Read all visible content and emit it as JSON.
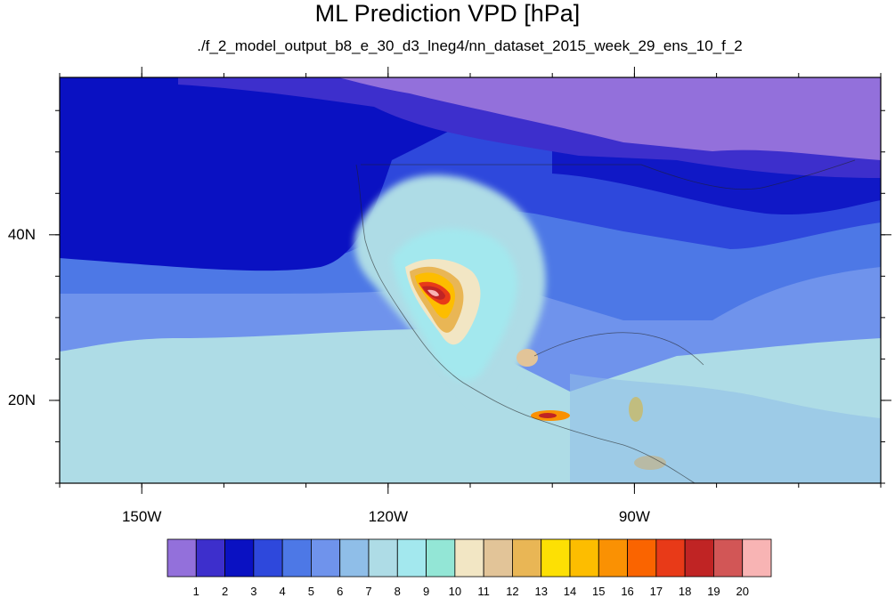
{
  "chart_data": {
    "type": "heatmap",
    "title": "ML Prediction VPD [hPa]",
    "subtitle": "./f_2_model_output_b8_e_30_d3_lneg4/nn_dataset_2015_week_29_ens_10_f_2",
    "lon_range": [
      -160,
      -60
    ],
    "lat_range": [
      10,
      59
    ],
    "x_ticks": [
      {
        "lon": -150,
        "label": "150W"
      },
      {
        "lon": -120,
        "label": "120W"
      },
      {
        "lon": -90,
        "label": "90W"
      }
    ],
    "y_ticks": [
      {
        "lat": 40,
        "label": "40N"
      },
      {
        "lat": 20,
        "label": "20N"
      }
    ],
    "levels": [
      "1",
      "2",
      "3",
      "4",
      "5",
      "6",
      "7",
      "8",
      "9",
      "10",
      "11",
      "12",
      "13",
      "14",
      "15",
      "16",
      "17",
      "18",
      "19",
      "20"
    ],
    "colors": [
      "#9370db",
      "#3d2fcc",
      "#0a11c2",
      "#2e48dc",
      "#4d78e6",
      "#6f93ec",
      "#8fbee8",
      "#aedce6",
      "#a3e8ee",
      "#93e6d6",
      "#f2e6c4",
      "#e2c498",
      "#e9b655",
      "#fde004",
      "#fdbd00",
      "#fa9103",
      "#fa6400",
      "#e83a18",
      "#c02424",
      "#d25656",
      "#f8b4b4"
    ],
    "regions": {
      "north_pacific_ocean": 3,
      "canada_arctic": 1,
      "subtropical_pacific": 7,
      "gulf_and_caribbean": 7,
      "us_interior": 5,
      "desert_southwest_peak": 19
    }
  }
}
